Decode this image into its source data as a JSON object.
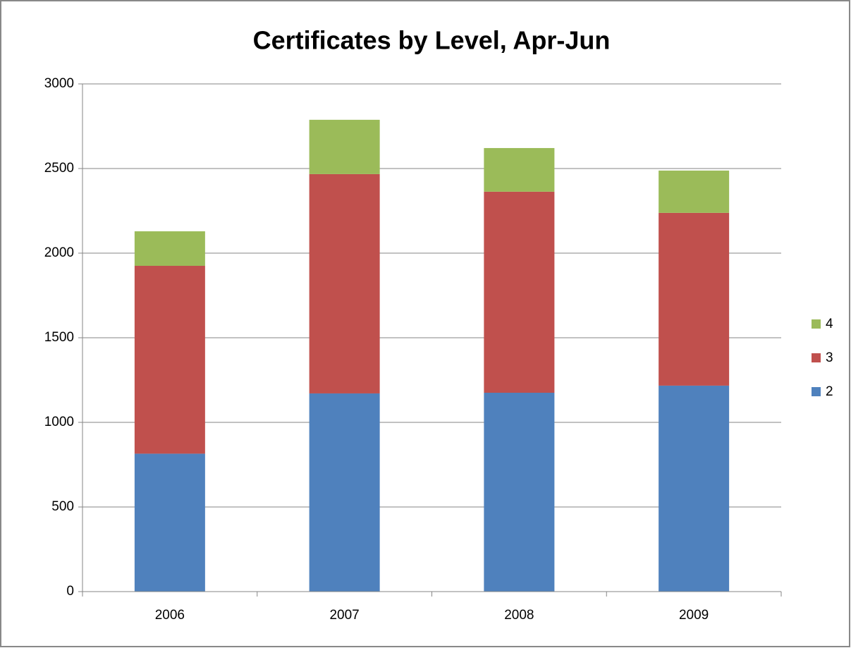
{
  "chart_data": {
    "type": "bar",
    "stacked": true,
    "title": "Certificates by Level, Apr-Jun",
    "categories": [
      "2006",
      "2007",
      "2008",
      "2009"
    ],
    "series": [
      {
        "name": "2",
        "color": "#4f81bd",
        "values": [
          815,
          1171,
          1175,
          1217
        ]
      },
      {
        "name": "3",
        "color": "#c0504d",
        "values": [
          1110,
          1296,
          1188,
          1021
        ]
      },
      {
        "name": "4",
        "color": "#9bbb59",
        "values": [
          204,
          321,
          258,
          250
        ]
      }
    ],
    "ylim": [
      0,
      3000
    ],
    "yticks": [
      0,
      500,
      1000,
      1500,
      2000,
      2500,
      3000
    ],
    "grid": true,
    "legend": "right"
  }
}
